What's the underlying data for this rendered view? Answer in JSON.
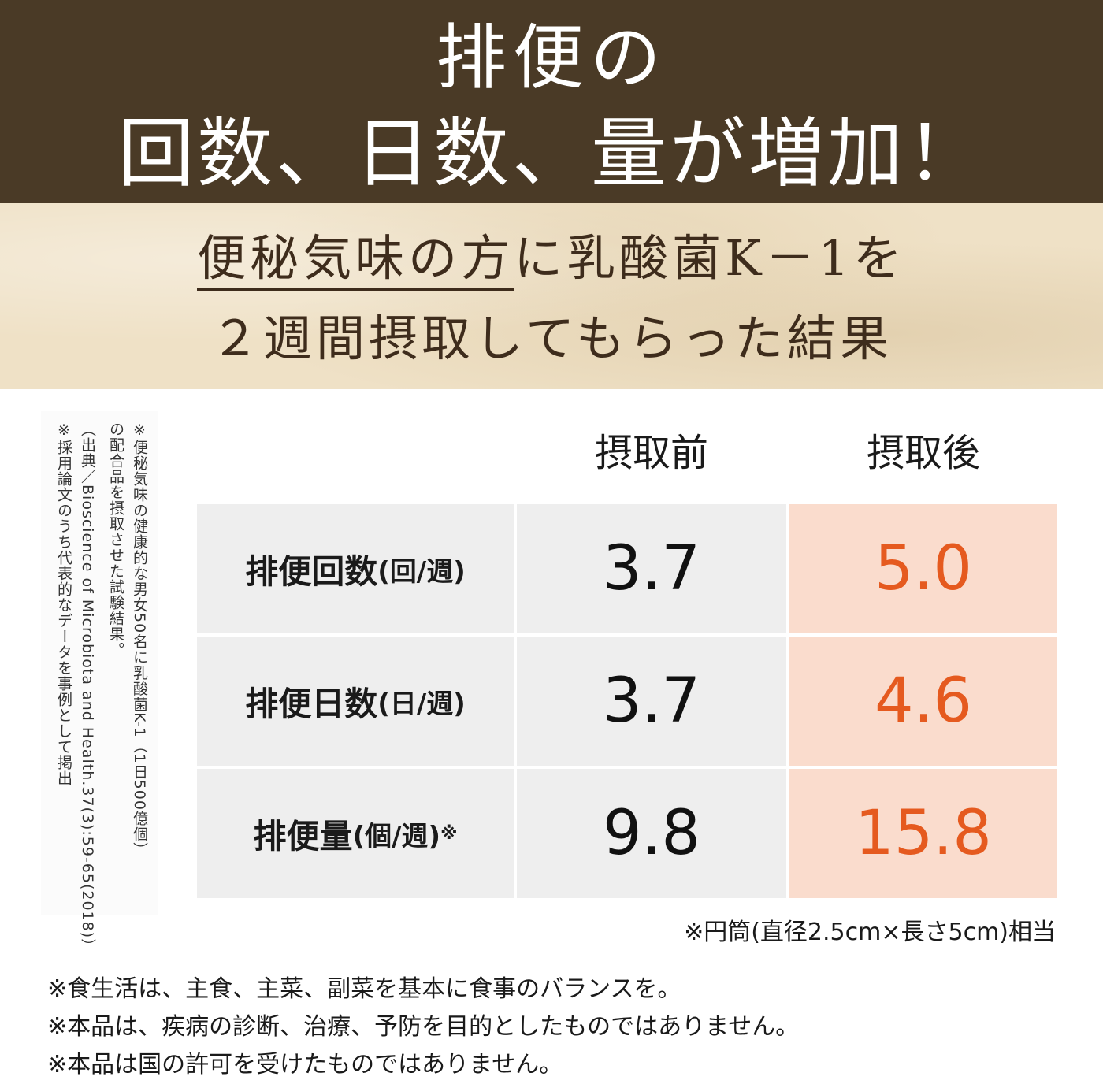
{
  "header": {
    "title_line1": "排便の",
    "title_line2": "回数、日数、量が増加！"
  },
  "subtitle": {
    "line1_underlined": "便秘気味の方",
    "line1_rest": "に乳酸菌K－1を",
    "line2": "２週間摂取してもらった結果"
  },
  "side_notes": {
    "note1": "※便秘気味の健康的な男女50名に乳酸菌K-1（1日500億個）\nの配合品を摂取させた試験結果。",
    "note2": "（出典／Bioscience of Microbiota and Health.37(3):59-65(2018)）\n※採用論文のうち代表的なデータを事例として掲出"
  },
  "table": {
    "column_before": "摂取前",
    "column_after": "摂取後",
    "rows": [
      {
        "label": "排便回数",
        "unit": "(回/週)",
        "mark": "",
        "before": "3.7",
        "after": "5.0"
      },
      {
        "label": "排便日数",
        "unit": "(日/週)",
        "mark": "",
        "before": "3.7",
        "after": "4.6"
      },
      {
        "label": "排便量",
        "unit": "(個/週)",
        "mark": "※",
        "before": "9.8",
        "after": "15.8"
      }
    ],
    "colors": {
      "label_bg": "#eeeeee",
      "after_bg": "#fadccd",
      "after_text": "#e55a1f"
    }
  },
  "table_footnote": "※円筒(直径2.5cm×長さ5cm)相当",
  "disclaimers": [
    "※食生活は、主食、主菜、副菜を基本に食事のバランスを。",
    "※本品は、疾病の診断、治療、予防を目的としたものではありません。",
    "※本品は国の許可を受けたものではありません。"
  ]
}
